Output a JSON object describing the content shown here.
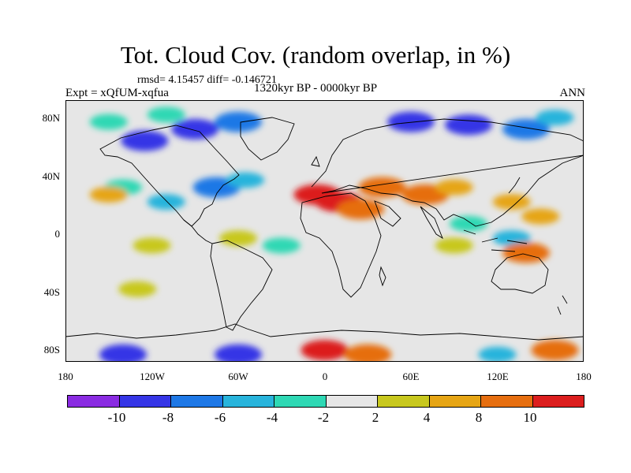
{
  "figure": {
    "title": "Tot. Cloud Cov. (random overlap, in %)",
    "stats": "rmsd= 4.15457 diff= -0.146721",
    "expt": "Expt = xQfUM-xqfua",
    "period": "1320kyr BP - 0000kyr BP",
    "season": "ANN"
  },
  "axes": {
    "y_ticks": [
      {
        "label": "80N",
        "lat": 80
      },
      {
        "label": "40N",
        "lat": 40
      },
      {
        "label": "0",
        "lat": 0
      },
      {
        "label": "40S",
        "lat": -40
      },
      {
        "label": "80S",
        "lat": -80
      }
    ],
    "x_ticks": [
      {
        "label": "180",
        "lon": -180
      },
      {
        "label": "120W",
        "lon": -120
      },
      {
        "label": "60W",
        "lon": -60
      },
      {
        "label": "0",
        "lon": 0
      },
      {
        "label": "60E",
        "lon": 60
      },
      {
        "label": "120E",
        "lon": 120
      },
      {
        "label": "180",
        "lon": 180
      }
    ],
    "lat_range": [
      -90,
      90
    ],
    "lon_range": [
      -180,
      180
    ]
  },
  "colorbar": {
    "labels": [
      "-10",
      "-8",
      "-6",
      "-4",
      "-2",
      "2",
      "4",
      "8",
      "10"
    ],
    "colors": [
      "#8a2be2",
      "#3535e6",
      "#1e78e6",
      "#28b4dc",
      "#2ed8b4",
      "#e6e6e6",
      "#c8c81e",
      "#e6a514",
      "#e66e0f",
      "#dc1e1e"
    ]
  },
  "chart_data": {
    "type": "heatmap",
    "title": "Tot. Cloud Cov. (random overlap, in %)",
    "x_range": [
      -180,
      180
    ],
    "y_range": [
      -90,
      90
    ],
    "levels": [
      -10,
      -8,
      -6,
      -4,
      -2,
      2,
      4,
      8,
      10
    ],
    "regions": [
      {
        "lon": -125,
        "lat": 62,
        "value": -10
      },
      {
        "lon": -90,
        "lat": 70,
        "value": -10
      },
      {
        "lon": -60,
        "lat": 75,
        "value": -8
      },
      {
        "lon": 60,
        "lat": 75,
        "value": -10
      },
      {
        "lon": 100,
        "lat": 73,
        "value": -10
      },
      {
        "lon": 140,
        "lat": 70,
        "value": -8
      },
      {
        "lon": 160,
        "lat": 78,
        "value": -6
      },
      {
        "lon": -75,
        "lat": 30,
        "value": -8
      },
      {
        "lon": -55,
        "lat": 35,
        "value": -6
      },
      {
        "lon": -110,
        "lat": 20,
        "value": -6
      },
      {
        "lon": -140,
        "lat": 30,
        "value": -4
      },
      {
        "lon": -150,
        "lat": 75,
        "value": -4
      },
      {
        "lon": -110,
        "lat": 80,
        "value": -4
      },
      {
        "lon": 10,
        "lat": 20,
        "value": 10
      },
      {
        "lon": -5,
        "lat": 25,
        "value": 10
      },
      {
        "lon": 25,
        "lat": 15,
        "value": 8
      },
      {
        "lon": 40,
        "lat": 30,
        "value": 8
      },
      {
        "lon": 70,
        "lat": 25,
        "value": 8
      },
      {
        "lon": 90,
        "lat": 30,
        "value": 4
      },
      {
        "lon": 130,
        "lat": 20,
        "value": 4
      },
      {
        "lon": 150,
        "lat": 10,
        "value": 4
      },
      {
        "lon": -150,
        "lat": 25,
        "value": 4
      },
      {
        "lon": -120,
        "lat": -10,
        "value": 2
      },
      {
        "lon": -60,
        "lat": -5,
        "value": 2
      },
      {
        "lon": 90,
        "lat": -10,
        "value": 2
      },
      {
        "lon": 130,
        "lat": -5,
        "value": -6
      },
      {
        "lon": 140,
        "lat": -15,
        "value": 8
      },
      {
        "lon": 100,
        "lat": 5,
        "value": -4
      },
      {
        "lon": -30,
        "lat": -10,
        "value": -4
      },
      {
        "lon": 60,
        "lat": 5,
        "value": -2
      },
      {
        "lon": -130,
        "lat": -40,
        "value": 2
      },
      {
        "lon": -60,
        "lat": -85,
        "value": -10
      },
      {
        "lon": -140,
        "lat": -85,
        "value": -10
      },
      {
        "lon": 0,
        "lat": -82,
        "value": 10
      },
      {
        "lon": 30,
        "lat": -85,
        "value": 8
      },
      {
        "lon": 120,
        "lat": -85,
        "value": -6
      },
      {
        "lon": 160,
        "lat": -82,
        "value": 8
      }
    ]
  }
}
